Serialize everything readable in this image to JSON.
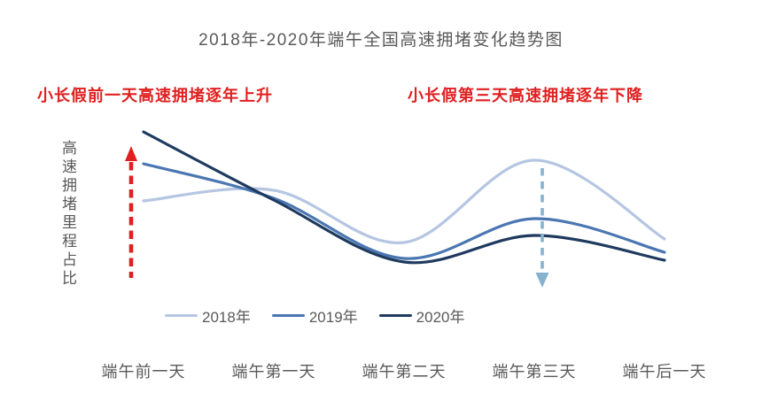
{
  "title": "2018年-2020年端午全国高速拥堵变化趋势图",
  "annotations": {
    "left": "小长假前一天高速拥堵逐年上升",
    "right": "小长假第三天高速拥堵逐年下降"
  },
  "y_axis_label": "高速拥堵里程占比",
  "colors": {
    "red": "#e02020",
    "down_arrow": "#86b2d0",
    "text_gray": "#595959"
  },
  "chart_data": {
    "type": "line",
    "smooth": true,
    "title": "2018年-2020年端午全国高速拥堵变化趋势图",
    "ylabel": "高速拥堵里程占比",
    "xlabel": "",
    "categories": [
      "端午前一天",
      "端午第一天",
      "端午第二天",
      "端午第三天",
      "端午后一天"
    ],
    "series": [
      {
        "name": "2018年",
        "color": "#b5c6e2",
        "values": [
          5.15,
          5.75,
          2.8,
          7.45,
          3.0
        ]
      },
      {
        "name": "2019年",
        "color": "#4a76b2",
        "values": [
          7.25,
          5.3,
          1.9,
          4.15,
          2.25
        ]
      },
      {
        "name": "2020年",
        "color": "#1f3a5f",
        "values": [
          9.05,
          5.2,
          1.7,
          3.2,
          1.8
        ]
      }
    ],
    "value_note": "relative congestion-mileage ratio, no numeric axis shown",
    "ylim": [
      0,
      10
    ],
    "grid": false,
    "legend_position": "bottom",
    "annotations": [
      {
        "text": "小长假前一天高速拥堵逐年上升",
        "arrow": "red dashed up arrow at first category"
      },
      {
        "text": "小长假第三天高速拥堵逐年下降",
        "arrow": "light-blue dashed down arrow at fourth category"
      }
    ]
  }
}
